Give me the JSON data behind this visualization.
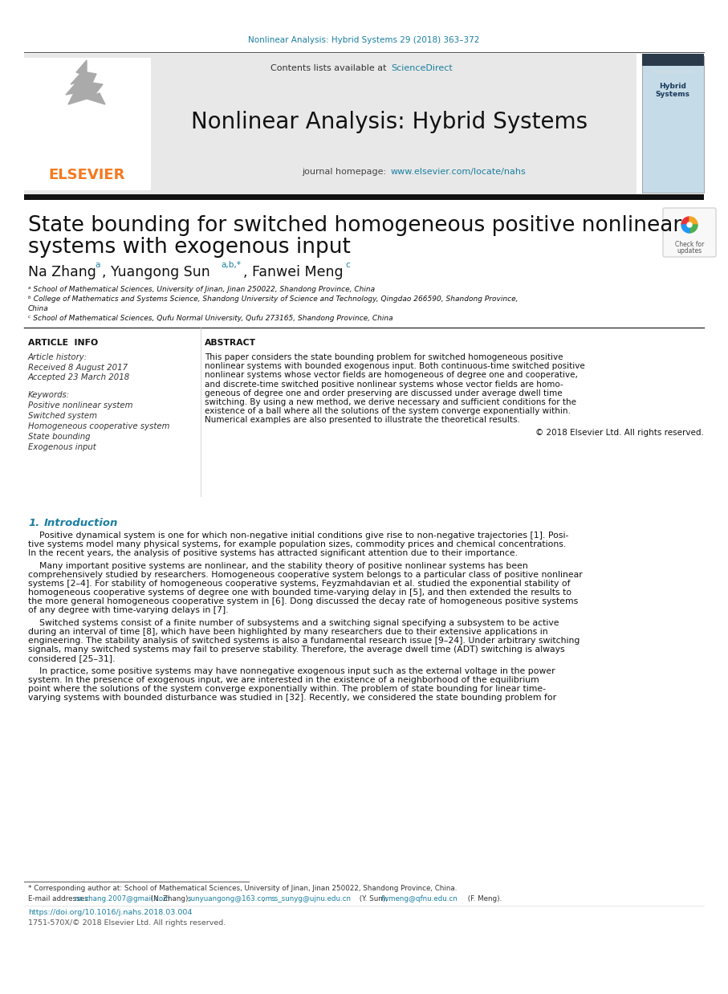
{
  "page_bg": "#ffffff",
  "header_journal_line": "Nonlinear Analysis: Hybrid Systems 29 (2018) 363–372",
  "header_journal_color": "#1a7fa0",
  "journal_banner_bg": "#e8e8e8",
  "journal_banner_text": "Nonlinear Analysis: Hybrid Systems",
  "banner_content_text": "Contents lists available at",
  "banner_sciencedirect": "ScienceDirect",
  "banner_homepage_text": "journal homepage: ",
  "banner_homepage_url": "www.elsevier.com/locate/nahs",
  "elsevier_color": "#f47920",
  "teal_color": "#1a7fa0",
  "article_title_line1": "State bounding for switched homogeneous positive nonlinear",
  "article_title_line2": "systems with exogenous input",
  "author1": "Na Zhang",
  "author1_sup": "a",
  "author2": ", Yuangong Sun",
  "author2_sup": "a,b,*",
  "author3": ", Fanwei Meng",
  "author3_sup": "c",
  "affil_a": "ᵃ School of Mathematical Sciences, University of Jinan, Jinan 250022, Shandong Province, China",
  "affil_b": "ᵇ College of Mathematics and Systems Science, Shandong University of Science and Technology, Qingdao 266590, Shandong Province,",
  "affil_b2": "China",
  "affil_c": "ᶜ School of Mathematical Sciences, Qufu Normal University, Qufu 273165, Shandong Province, China",
  "article_info_title": "ARTICLE  INFO",
  "abstract_title": "ABSTRACT",
  "article_history": "Article history:",
  "received": "Received 8 August 2017",
  "accepted": "Accepted 23 March 2018",
  "keywords_title": "Keywords:",
  "keywords": [
    "Positive nonlinear system",
    "Switched system",
    "Homogeneous cooperative system",
    "State bounding",
    "Exogenous input"
  ],
  "abstract_lines": [
    "This paper considers the state bounding problem for switched homogeneous positive",
    "nonlinear systems with bounded exogenous input. Both continuous-time switched positive",
    "nonlinear systems whose vector fields are homogeneous of degree one and cooperative,",
    "and discrete-time switched positive nonlinear systems whose vector fields are homo-",
    "geneous of degree one and order preserving are discussed under average dwell time",
    "switching. By using a new method, we derive necessary and sufficient conditions for the",
    "existence of a ball where all the solutions of the system converge exponentially within.",
    "Numerical examples are also presented to illustrate the theoretical results."
  ],
  "copyright": "© 2018 Elsevier Ltd. All rights reserved.",
  "section_title_num": "1.",
  "section_title_text": "   Introduction",
  "intro_p1": [
    "    Positive dynamical system is one for which non-negative initial conditions give rise to non-negative trajectories [1]. Posi-",
    "tive systems model many physical systems, for example population sizes, commodity prices and chemical concentrations.",
    "In the recent years, the analysis of positive systems has attracted significant attention due to their importance."
  ],
  "intro_p2": [
    "    Many important positive systems are nonlinear, and the stability theory of positive nonlinear systems has been",
    "comprehensively studied by researchers. Homogeneous cooperative system belongs to a particular class of positive nonlinear",
    "systems [2–4]. For stability of homogeneous cooperative systems, Feyzmahdavian et al. studied the exponential stability of",
    "homogeneous cooperative systems of degree one with bounded time-varying delay in [5], and then extended the results to",
    "the more general homogeneous cooperative system in [6]. Dong discussed the decay rate of homogeneous positive systems",
    "of any degree with time-varying delays in [7]."
  ],
  "intro_p3": [
    "    Switched systems consist of a finite number of subsystems and a switching signal specifying a subsystem to be active",
    "during an interval of time [8], which have been highlighted by many researchers due to their extensive applications in",
    "engineering. The stability analysis of switched systems is also a fundamental research issue [9–24]. Under arbitrary switching",
    "signals, many switched systems may fail to preserve stability. Therefore, the average dwell time (ADT) switching is always",
    "considered [25–31]."
  ],
  "intro_p4": [
    "    In practice, some positive systems may have nonnegative exogenous input such as the external voltage in the power",
    "system. In the presence of exogenous input, we are interested in the existence of a neighborhood of the equilibrium",
    "point where the solutions of the system converge exponentially within. The problem of state bounding for linear time-",
    "varying systems with bounded disturbance was studied in [32]. Recently, we considered the state bounding problem for"
  ],
  "footnote_star": "* Corresponding author at: School of Mathematical Sciences, University of Jinan, Jinan 250022, Shandong Province, China.",
  "footnote_email_prefix": "E-mail addresses: ",
  "footnote_email1": "na.zhang.2007@gmail.com",
  "footnote_email1_suffix": " (N. Zhang), ",
  "footnote_email2": "sunyuangong@163.com",
  "footnote_email2_suffix": ", ",
  "footnote_email3": "ss_sunyg@ujnu.edu.cn",
  "footnote_email3_suffix": " (Y. Sun), ",
  "footnote_email4": "fwmeng@qfnu.edu.cn",
  "footnote_email4_suffix": " (F. Meng).",
  "doi_text": "https://doi.org/10.1016/j.nahs.2018.03.004",
  "issn_text": "1751-570X/© 2018 Elsevier Ltd. All rights reserved.",
  "dark_bar_color": "#111111",
  "thumb_bg": "#c5dce8",
  "thumb_dark": "#2a3a4a"
}
